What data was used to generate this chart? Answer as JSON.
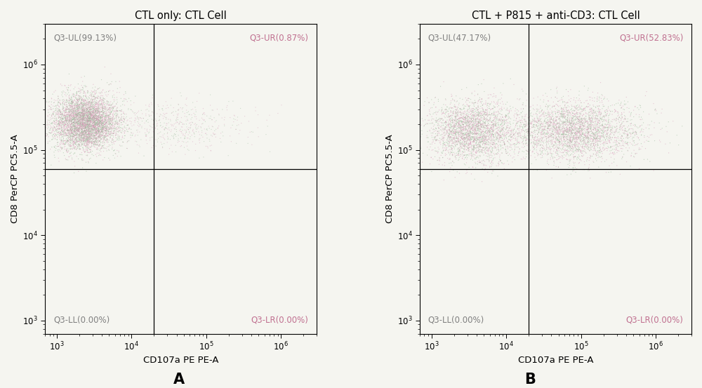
{
  "panel_A": {
    "title": "CTL only: CTL Cell",
    "quadrant_labels": {
      "UL": "Q3-UL(99.13%)",
      "UR": "Q3-UR(0.87%)",
      "LL": "Q3-LL(0.00%)",
      "LR": "Q3-LR(0.00%)"
    },
    "gate_x": 20000.0,
    "gate_y": 60000.0,
    "main_cluster": {
      "x_center_log": 3.38,
      "y_center_log": 5.32,
      "x_std_log": 0.22,
      "y_std_log": 0.16,
      "n_points": 5500
    },
    "sparse_cluster": {
      "x_center_log": 4.5,
      "y_center_log": 5.28,
      "x_std_log": 0.5,
      "y_std_log": 0.15,
      "n_points": 600
    }
  },
  "panel_B": {
    "title": "CTL + P815 + anti-CD3: CTL Cell",
    "quadrant_labels": {
      "UL": "Q3-UL(47.17%)",
      "UR": "Q3-UR(52.83%)",
      "LL": "Q3-LL(0.00%)",
      "LR": "Q3-LR(0.00%)"
    },
    "gate_x": 20000.0,
    "gate_y": 60000.0,
    "left_cluster": {
      "x_center_log": 3.55,
      "y_center_log": 5.22,
      "x_std_log": 0.28,
      "y_std_log": 0.18,
      "n_points": 3000
    },
    "right_cluster": {
      "x_center_log": 4.9,
      "y_center_log": 5.22,
      "x_std_log": 0.42,
      "y_std_log": 0.17,
      "n_points": 3500
    }
  },
  "xlim": [
    700,
    3000000
  ],
  "ylim": [
    700,
    3000000
  ],
  "xlabel": "CD107a PE PE-A",
  "ylabel": "CD8 PerCP PC5.5-A",
  "dot_size": 0.8,
  "dot_alpha": 0.55,
  "label_color_UL": "#808080",
  "label_color_UR": "#c07090",
  "label_fontsize": 8.5,
  "title_fontsize": 10.5,
  "axis_label_fontsize": 9.5,
  "panel_label_fontsize": 15,
  "background_color": "#f5f5f0",
  "plot_bg_color": "#f5f5f0",
  "line_color": "#000000",
  "color_pink": "#d899b8",
  "color_green": "#99bb99",
  "color_mixed": "#b0a8b0"
}
